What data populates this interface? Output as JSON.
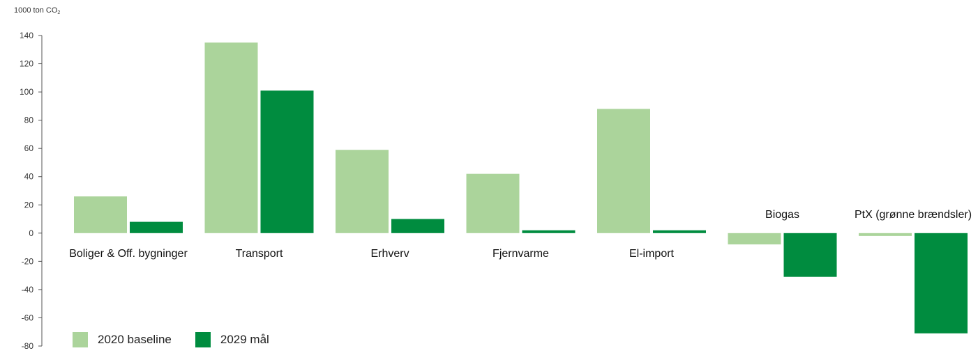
{
  "chart_data": {
    "type": "bar",
    "ylabel": "1000 ton CO",
    "ylabel_subscript": "2",
    "ylim": [
      -80,
      140
    ],
    "yticks": [
      140,
      120,
      100,
      80,
      60,
      40,
      20,
      0,
      -20,
      -40,
      -60,
      -80
    ],
    "grid": false,
    "legend_position": "bottom-left",
    "categories": [
      "Boliger & Off. bygninger",
      "Transport",
      "Erhverv",
      "Fjernvarme",
      "El-import",
      "Biogas",
      "PtX (grønne brændsler)"
    ],
    "series": [
      {
        "name": "2020 baseline",
        "color": "#abd49b",
        "values": [
          26,
          135,
          59,
          42,
          88,
          -8,
          -2
        ]
      },
      {
        "name": "2029 mål",
        "color": "#008c3f",
        "values": [
          8,
          101,
          10,
          2,
          2,
          -31,
          -71
        ]
      }
    ]
  }
}
